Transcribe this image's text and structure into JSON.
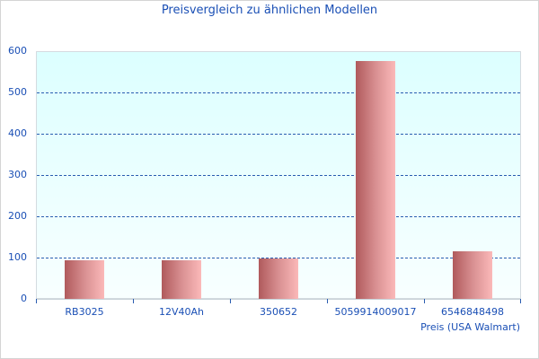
{
  "chart_data": {
    "type": "bar",
    "title": "Preisvergleich zu ähnlichen Modellen",
    "xlabel": "Preis (USA Walmart)",
    "ylabel": "",
    "categories": [
      "RB3025",
      "12V40Ah",
      "350652",
      "5059914009017",
      "6546848498"
    ],
    "values": [
      94,
      94,
      98,
      577,
      115
    ],
    "ylim": [
      0,
      600
    ],
    "yticks": [
      "0",
      "100",
      "200",
      "300",
      "400",
      "500",
      "600"
    ],
    "grid": true,
    "legend": null,
    "colors": {
      "bar_dark": "#b05a5c",
      "bar_light": "#fbb9b9",
      "text": "#1a4fb5",
      "grid": "#2a5db0",
      "plot_bg_top": "#dcffff"
    }
  }
}
